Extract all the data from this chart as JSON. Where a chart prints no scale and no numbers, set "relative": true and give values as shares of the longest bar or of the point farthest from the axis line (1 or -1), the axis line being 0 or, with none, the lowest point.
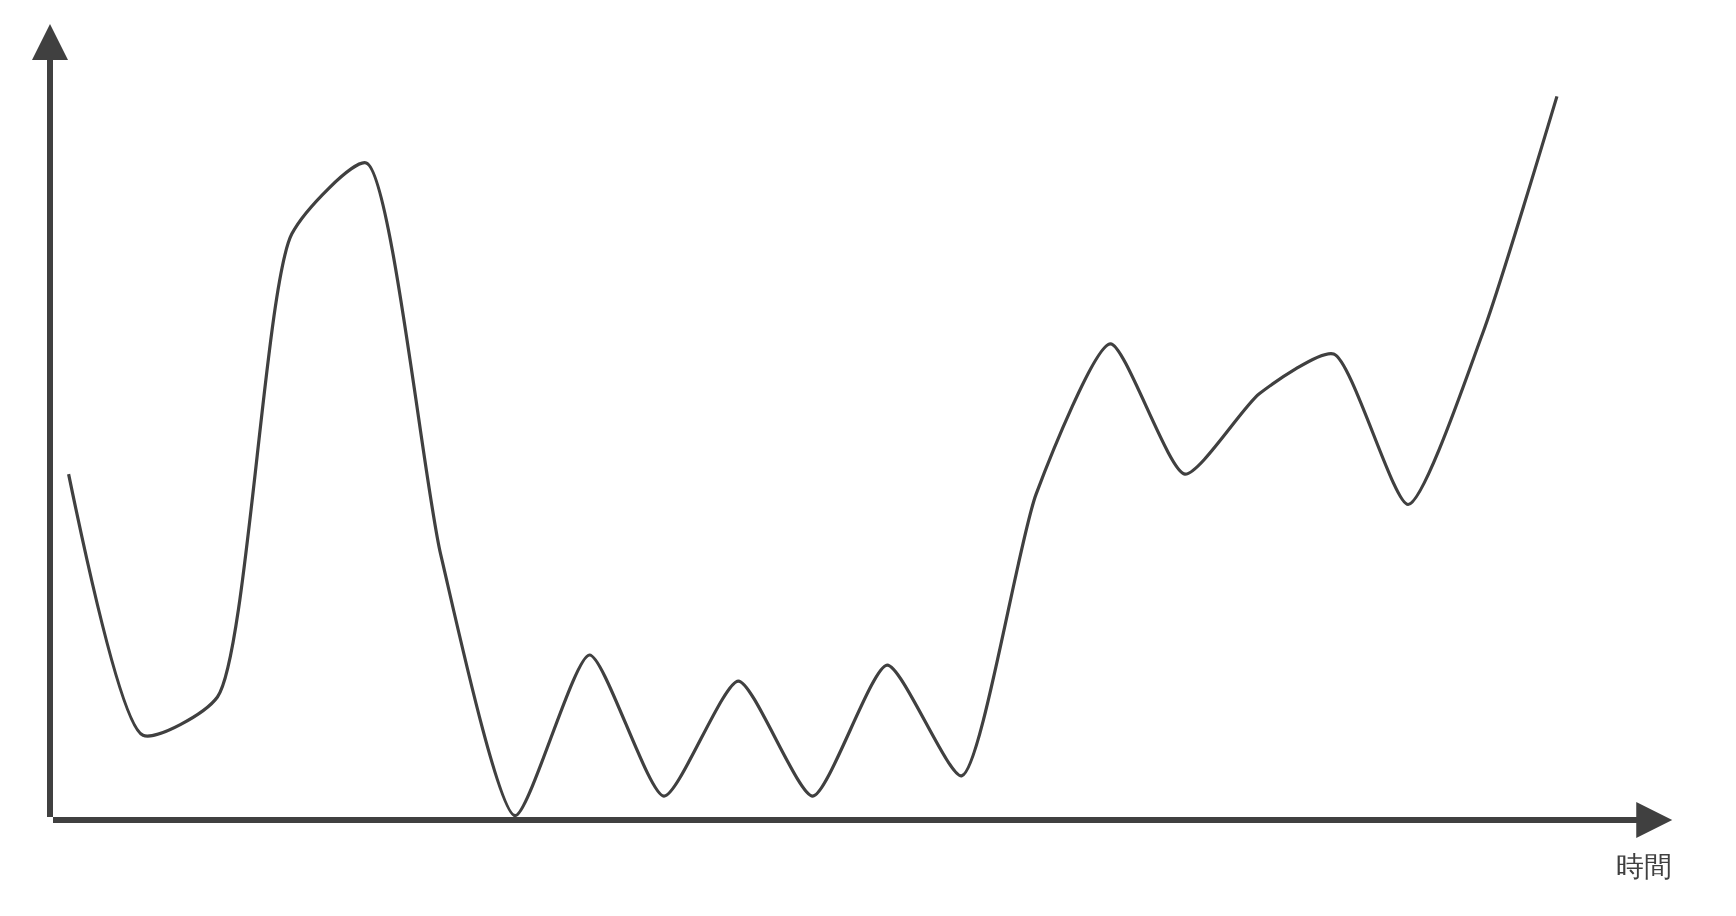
{
  "chart_data": {
    "type": "line",
    "relative": true,
    "xlabel": "時間",
    "marker": "none",
    "line_style": "solid",
    "categories": [
      null,
      null,
      null,
      null,
      null,
      null,
      null,
      null,
      null,
      null,
      null,
      null,
      null,
      null,
      null,
      null,
      null,
      null,
      null,
      null,
      null
    ],
    "series": [
      {
        "color": "#404040",
        "values": [
          0.478,
          0.117,
          0.17,
          0.81,
          0.908,
          0.367,
          0.006,
          0.228,
          0.033,
          0.192,
          0.033,
          0.214,
          0.061,
          0.45,
          0.658,
          0.478,
          0.589,
          0.644,
          0.436,
          0.672,
          1.0
        ]
      }
    ]
  }
}
